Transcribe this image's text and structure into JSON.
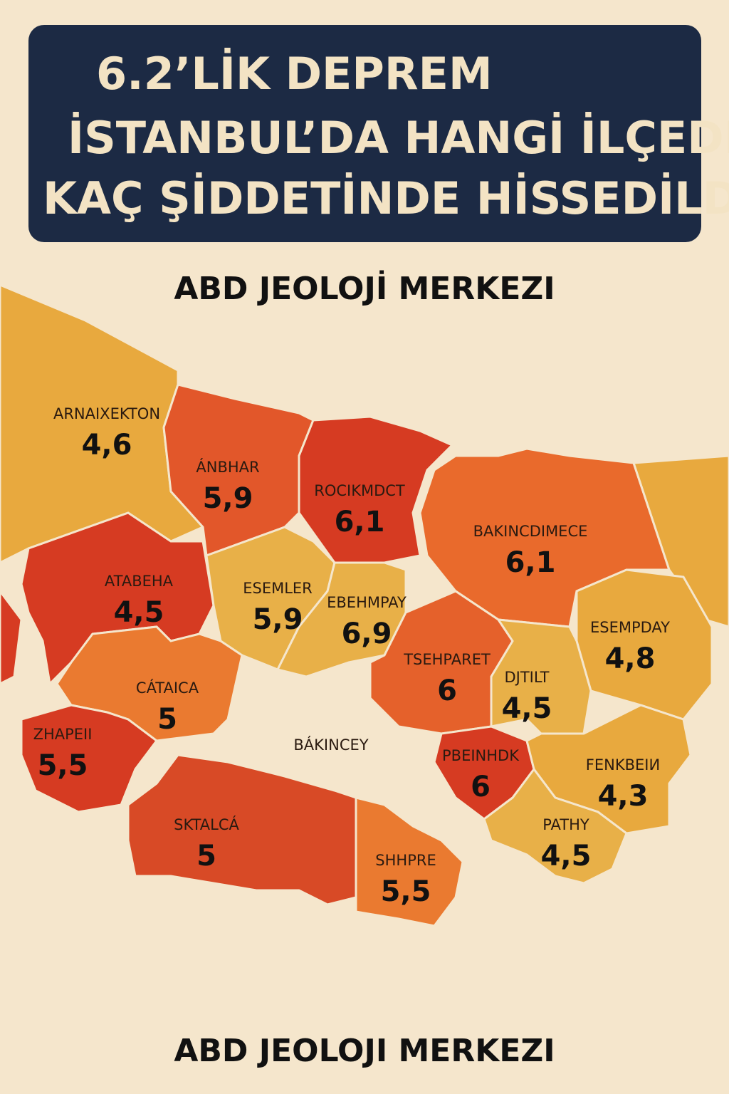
{
  "header": {
    "title": [
      "6.2’LİK DEPREM",
      "İSTANBUL’DA HANGİ İLÇEDE",
      "KAÇ ŞİDDETİNDE HİSSEDİLDİ?"
    ]
  },
  "subtitle": "ABD JEOLOJİ MERKEZI",
  "districts": [
    {
      "name": "ARNAIXEKTON",
      "value": "4,6"
    },
    {
      "name": "ÁNBHAR",
      "value": "5,9"
    },
    {
      "name": "ROCIKMDCT",
      "value": "6,1"
    },
    {
      "name": "BAKINCDIMECE",
      "value": "6,1"
    },
    {
      "name": "ATABEHA",
      "value": "4,5"
    },
    {
      "name": "ESEMLER",
      "value": "5,9"
    },
    {
      "name": "EBEHMPAY",
      "value": "6,9"
    },
    {
      "name": "ESEMPDAY",
      "value": "4,8"
    },
    {
      "name": "TSEHPARET",
      "value": "6"
    },
    {
      "name": "DJTILT",
      "value": "4,5"
    },
    {
      "name": "CÁTAICA",
      "value": "5"
    },
    {
      "name": "ZHAPEII",
      "value": "5,5"
    },
    {
      "name": "BÁKINCEY"
    },
    {
      "name": "PBEINHDK",
      "value": "6"
    },
    {
      "name": "FENKBEIИ",
      "value": "4,3"
    },
    {
      "name": "PATHY",
      "value": "4,5"
    },
    {
      "name": "SKTALCÁ",
      "value": "5"
    },
    {
      "name": "SHHPRE",
      "value": "5,5"
    }
  ],
  "footer": "ABD JEOLOJI MERKEZI"
}
